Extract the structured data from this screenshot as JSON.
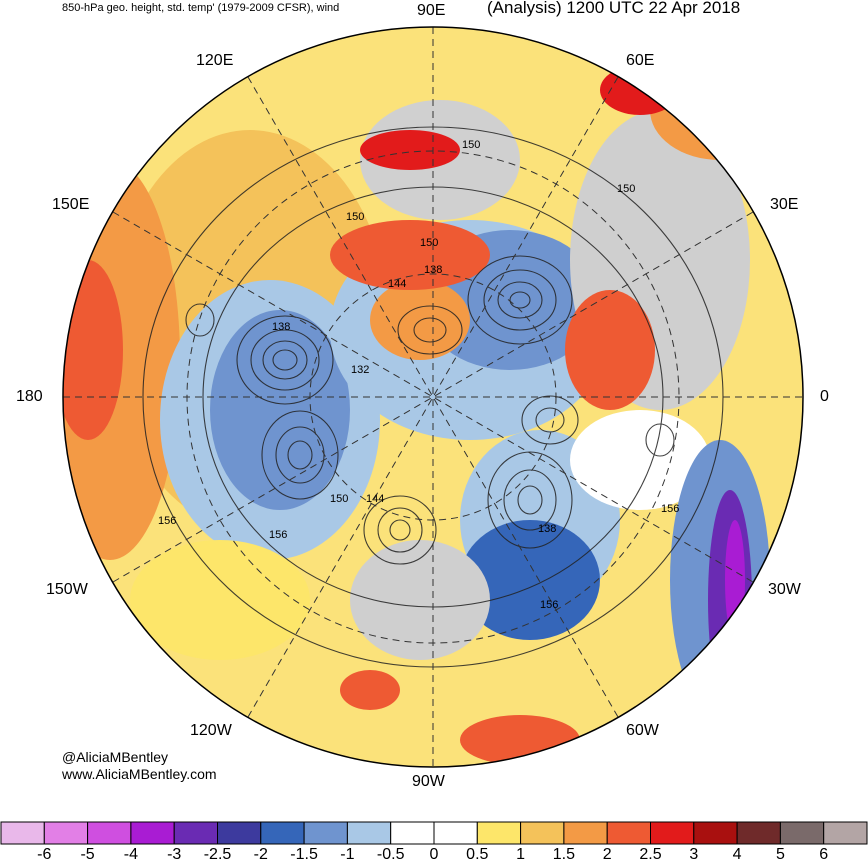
{
  "header": {
    "left_title": "850-hPa geo. height, std. temp' (1979-2009 CFSR), wind",
    "right_title": "(Analysis) 1200 UTC 22 Apr 2018"
  },
  "longitude_labels": {
    "e90": "90E",
    "e120": "120E",
    "e60": "60E",
    "e150": "150E",
    "e30": "30E",
    "l180": "180",
    "l0": "0",
    "w150": "150W",
    "w30": "30W",
    "w120": "120W",
    "w60": "60W",
    "w90": "90W"
  },
  "credit": {
    "handle": "@AliciaMBentley",
    "website": "www.AliciaMBentley.com"
  },
  "contour_labels": [
    "150",
    "150",
    "150",
    "150",
    "138",
    "144",
    "138",
    "132",
    "150",
    "144",
    "138",
    "156",
    "156",
    "156",
    "156"
  ],
  "colorbar": {
    "labels": [
      "-6",
      "-5",
      "-4",
      "-3",
      "-2.5",
      "-2",
      "-1.5",
      "-1",
      "-0.5",
      "0",
      "0.5",
      "1",
      "1.5",
      "2",
      "2.5",
      "3",
      "4",
      "5",
      "6"
    ],
    "colors": [
      "#e9b8ea",
      "#e27fe6",
      "#cf4fe0",
      "#a91cd3",
      "#6a2bb3",
      "#3d3a9e",
      "#3566b9",
      "#6f94cf",
      "#a9c8e6",
      "#ffffff",
      "#ffffff",
      "#fde66a",
      "#f4c25a",
      "#f39a45",
      "#ee5a33",
      "#e21b1b",
      "#a9100f",
      "#6f2a2a",
      "#7a6a6a",
      "#b3a5a5"
    ]
  }
}
